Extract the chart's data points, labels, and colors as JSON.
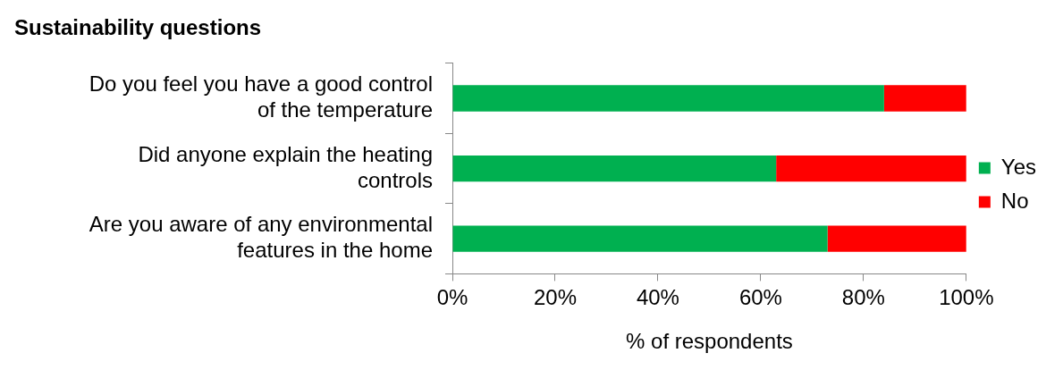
{
  "chart_data": {
    "type": "bar",
    "orientation": "horizontal",
    "stacked": true,
    "title": "Sustainability questions",
    "xlabel": "% of respondents",
    "categories": [
      "Do you feel you have a good control of the temperature",
      "Did anyone explain the heating controls",
      "Are you aware of any environmental features in the home"
    ],
    "series": [
      {
        "name": "Yes",
        "color": "#00b050",
        "values": [
          84,
          63,
          73
        ]
      },
      {
        "name": "No",
        "color": "#ff0000",
        "values": [
          16,
          37,
          27
        ]
      }
    ],
    "xlim": [
      0,
      100
    ],
    "xticks": [
      {
        "value": 0,
        "label": "0%"
      },
      {
        "value": 20,
        "label": "20%"
      },
      {
        "value": 40,
        "label": "40%"
      },
      {
        "value": 60,
        "label": "60%"
      },
      {
        "value": 80,
        "label": "80%"
      },
      {
        "value": 100,
        "label": "100%"
      }
    ],
    "grid": false,
    "legend": "right"
  }
}
